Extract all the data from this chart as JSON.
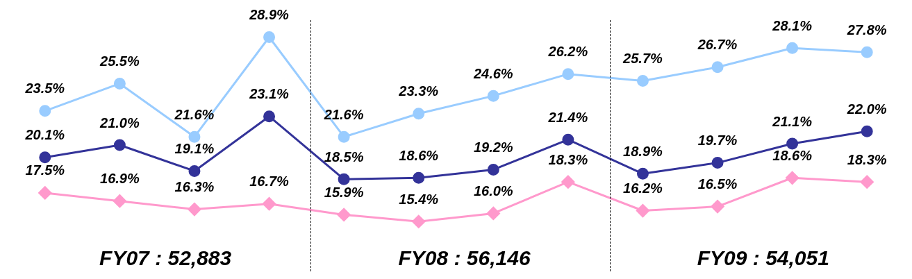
{
  "chart_data": {
    "type": "line",
    "categories": [
      null,
      null,
      null,
      null,
      null,
      null,
      null,
      null,
      null,
      null,
      null,
      null
    ],
    "line_style": "solid",
    "series": [
      {
        "color": "#99ccff",
        "marker": "circle",
        "values": [
          23.5,
          25.5,
          21.6,
          28.9,
          21.6,
          23.3,
          24.6,
          26.2,
          25.7,
          26.7,
          28.1,
          27.8
        ],
        "value_labels": [
          "23.5%",
          "25.5%",
          "21.6%",
          "28.9%",
          "21.6%",
          "23.3%",
          "24.6%",
          "26.2%",
          "25.7%",
          "26.7%",
          "28.1%",
          "27.8%"
        ]
      },
      {
        "color": "#333399",
        "marker": "circle",
        "values": [
          20.1,
          21.0,
          19.1,
          23.1,
          18.5,
          18.6,
          19.2,
          21.4,
          18.9,
          19.7,
          21.1,
          22.0
        ],
        "value_labels": [
          "20.1%",
          "21.0%",
          "19.1%",
          "23.1%",
          "18.5%",
          "18.6%",
          "19.2%",
          "21.4%",
          "18.9%",
          "19.7%",
          "21.1%",
          "22.0%"
        ]
      },
      {
        "color": "#ff99cc",
        "marker": "diamond",
        "values": [
          17.5,
          16.9,
          16.3,
          16.7,
          15.9,
          15.4,
          16.0,
          18.3,
          16.2,
          16.5,
          18.6,
          18.3
        ],
        "value_labels": [
          "17.5%",
          "16.9%",
          "16.3%",
          "16.7%",
          "15.9%",
          "15.4%",
          "16.0%",
          "18.3%",
          "16.2%",
          "16.5%",
          "18.6%",
          "18.3%"
        ]
      }
    ],
    "annotations": [
      "FY07 : 52,883",
      "FY08 : 56,146",
      "FY09 : 54,051"
    ]
  }
}
